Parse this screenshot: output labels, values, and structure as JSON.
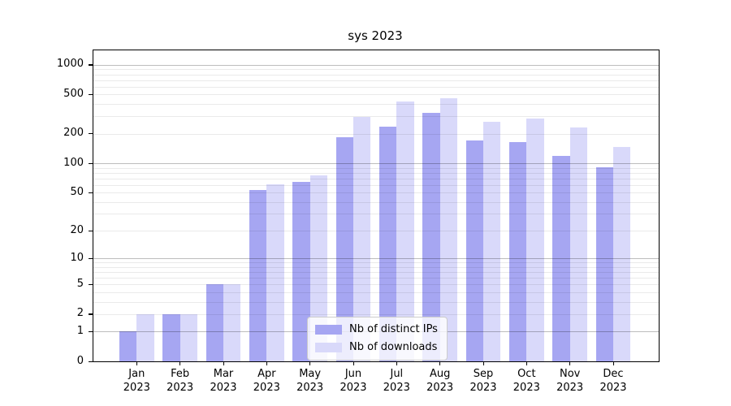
{
  "title": "sys 2023",
  "legend": {
    "items": [
      {
        "label": "Nb of distinct IPs",
        "color": "#a6a6f2"
      },
      {
        "label": "Nb of downloads",
        "color": "#d9d9fa"
      }
    ]
  },
  "y_axis": {
    "tick_values": [
      0,
      1,
      2,
      5,
      10,
      20,
      50,
      100,
      200,
      500,
      1000
    ],
    "tick_labels": [
      "0",
      "1",
      "2",
      "5",
      "10",
      "20",
      "50",
      "100",
      "200",
      "500",
      "1000"
    ]
  },
  "x_axis": {
    "months": [
      "Jan",
      "Feb",
      "Mar",
      "Apr",
      "May",
      "Jun",
      "Jul",
      "Aug",
      "Sep",
      "Oct",
      "Nov",
      "Dec"
    ],
    "year": "2023"
  },
  "chart_data": {
    "type": "bar",
    "title": "sys 2023",
    "categories": [
      "Jan 2023",
      "Feb 2023",
      "Mar 2023",
      "Apr 2023",
      "May 2023",
      "Jun 2023",
      "Jul 2023",
      "Aug 2023",
      "Sep 2023",
      "Oct 2023",
      "Nov 2023",
      "Dec 2023"
    ],
    "series": [
      {
        "name": "Nb of distinct IPs",
        "color": "#a6a6f2",
        "values": [
          1,
          2,
          5,
          53,
          65,
          185,
          237,
          325,
          172,
          163,
          120,
          91
        ]
      },
      {
        "name": "Nb of downloads",
        "color": "#d9d9fa",
        "values": [
          2,
          2,
          5,
          61,
          75,
          295,
          425,
          458,
          265,
          285,
          233,
          148
        ]
      }
    ],
    "xlabel": "",
    "ylabel": "",
    "y_scale": "log10(1+x)",
    "y_ticks": [
      0,
      1,
      2,
      5,
      10,
      20,
      50,
      100,
      200,
      500,
      1000
    ],
    "ylim": [
      0,
      1400
    ],
    "grid": true,
    "grid_minor_values": [
      2,
      3,
      4,
      5,
      6,
      7,
      8,
      9,
      20,
      30,
      40,
      50,
      60,
      70,
      80,
      90,
      200,
      300,
      400,
      500,
      600,
      700,
      800,
      900
    ],
    "grid_major_values": [
      1,
      10,
      100,
      1000
    ],
    "legend_position": "lower center"
  }
}
